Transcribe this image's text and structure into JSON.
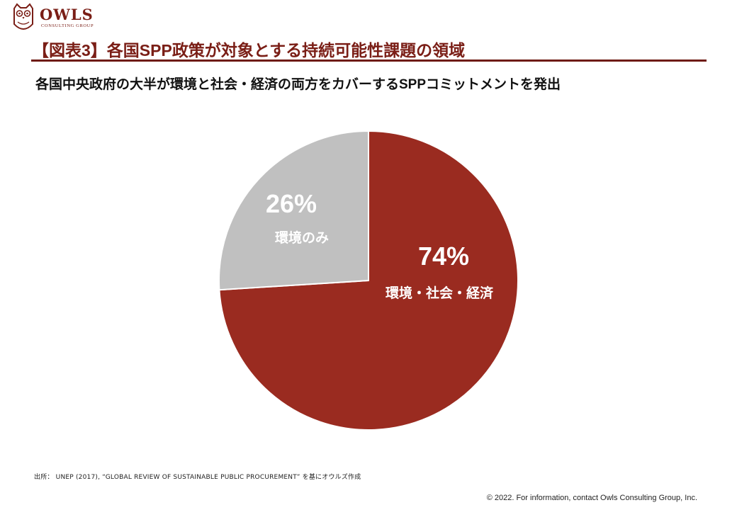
{
  "header": {
    "logo_text": "OWLS",
    "logo_subtext": "CONSULTING GROUP",
    "title": "【図表3】各国SPP政策が対象とする持続可能性課題の領域",
    "subtitle": "各国中央政府の大半が環境と社会・経済の両方をカバーするSPPコミットメントを発出"
  },
  "chart_data": {
    "type": "pie",
    "start_angle": "12 o'clock",
    "direction": "clockwise",
    "slices": [
      {
        "label": "環境・社会・経済",
        "value": 74,
        "value_label": "74%",
        "color": "#9a2b20"
      },
      {
        "label": "環境のみ",
        "value": 26,
        "value_label": "26%",
        "color": "#c0c0c0"
      }
    ]
  },
  "footer": {
    "source": "出所： UNEP (2017), “GLOBAL REVIEW OF SUSTAINABLE PUBLIC PROCUREMENT” を基にオウルズ作成",
    "copyright": "© 2022. For information, contact Owls Consulting Group, Inc."
  }
}
